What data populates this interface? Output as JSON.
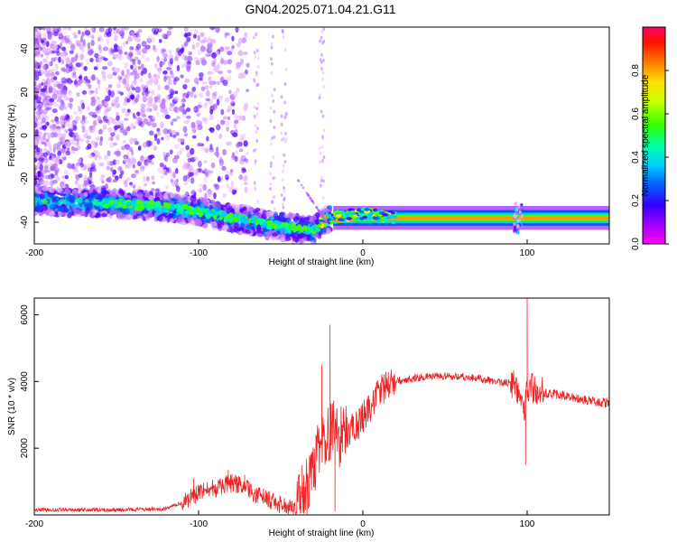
{
  "figure": {
    "title": "GN04.2025.071.04.21.G11"
  },
  "chart_data": [
    {
      "type": "heatmap",
      "title": "GN04.2025.071.04.21.G11",
      "xlabel": "Height of straight line (km)",
      "ylabel": "Frequency (Hz)",
      "xlim": [
        -200,
        150
      ],
      "ylim": [
        -50,
        50
      ],
      "xticks": [
        -200,
        -100,
        0,
        100
      ],
      "yticks": [
        -40,
        -20,
        0,
        20,
        40
      ],
      "colorbar": {
        "label": "Normalized spectral amplitude",
        "range": [
          0,
          1
        ],
        "ticks": [
          "0.0",
          "0.2",
          "0.4",
          "0.6",
          "0.8"
        ],
        "colormap": [
          "#ff00ff",
          "#6600ff",
          "#0000ff",
          "#00ccff",
          "#00ff66",
          "#66ff00",
          "#ffff00",
          "#ff9900",
          "#ff0000",
          "#ff0066"
        ]
      },
      "main_tone_track": {
        "x": [
          -200,
          -180,
          -160,
          -140,
          -120,
          -100,
          -80,
          -70,
          -60,
          -50,
          -40,
          -30,
          -25,
          -20,
          -10,
          0,
          10,
          20,
          50,
          90,
          95,
          100,
          150
        ],
        "frequency": [
          -30,
          -31,
          -31,
          -32,
          -33,
          -35,
          -38,
          -39,
          -41,
          -42,
          -43,
          -44,
          -40,
          -38,
          -37,
          -36,
          -37,
          -38,
          -38,
          -38,
          -38,
          -38,
          -38
        ]
      }
    },
    {
      "type": "line",
      "xlabel": "Height of straight line (km)",
      "ylabel": "SNR (10 * v/v)",
      "xlim": [
        -200,
        150
      ],
      "ylim": [
        0,
        6500
      ],
      "xticks": [
        -200,
        -100,
        0,
        100
      ],
      "yticks": [
        2000,
        4000,
        6000
      ],
      "color": "#ee2222",
      "envelope": {
        "x": [
          -200,
          -150,
          -120,
          -110,
          -100,
          -90,
          -80,
          -75,
          -70,
          -60,
          -50,
          -40,
          -35,
          -30,
          -25,
          -20,
          -18,
          -15,
          -10,
          -5,
          0,
          5,
          10,
          15,
          20,
          25,
          30,
          40,
          50,
          60,
          70,
          80,
          90,
          95,
          98,
          100,
          102,
          105,
          110,
          120,
          130,
          140,
          150
        ],
        "y": [
          150,
          150,
          180,
          350,
          650,
          800,
          950,
          900,
          750,
          500,
          300,
          250,
          700,
          1400,
          2200,
          2500,
          2800,
          2300,
          2500,
          2600,
          2900,
          3300,
          3650,
          3900,
          4000,
          4050,
          4100,
          4150,
          4150,
          4150,
          4100,
          4000,
          3950,
          3800,
          3200,
          3700,
          3900,
          3700,
          3650,
          3600,
          3500,
          3400,
          3350
        ]
      },
      "spikes": [
        {
          "x": -103,
          "y": 1100
        },
        {
          "x": -82,
          "y": 1350
        },
        {
          "x": -72,
          "y": 1200
        },
        {
          "x": -37,
          "y": 1500
        },
        {
          "x": -25,
          "y": 4500
        },
        {
          "x": -20,
          "y": 5700
        },
        {
          "x": -17,
          "y": 100
        },
        {
          "x": 100,
          "y": 6500
        },
        {
          "x": 99,
          "y": 1500
        }
      ]
    }
  ]
}
